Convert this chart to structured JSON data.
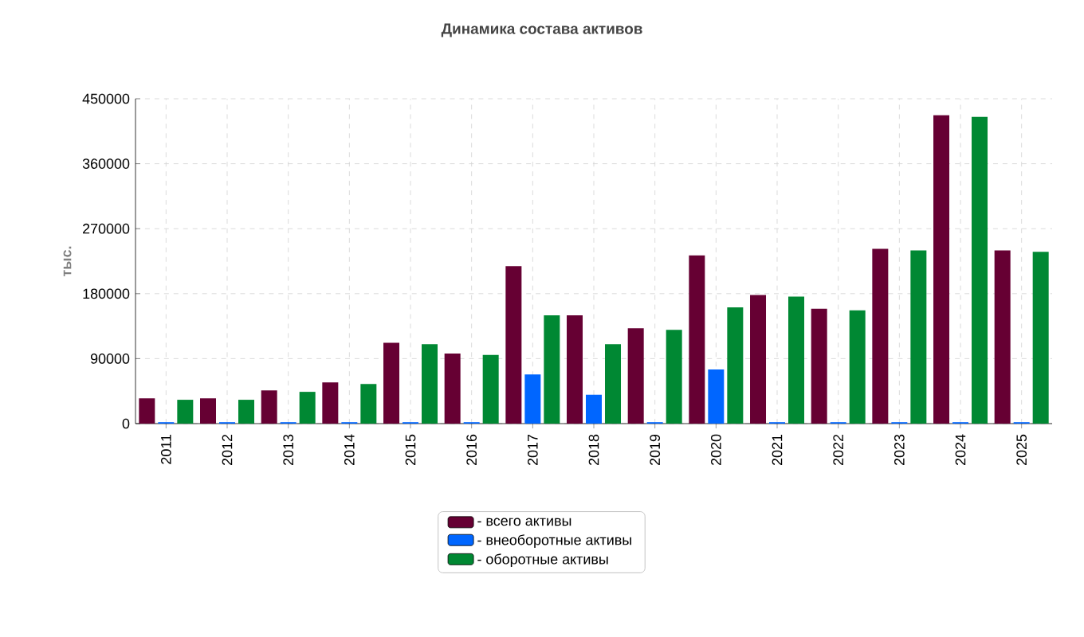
{
  "chart_data": {
    "type": "bar",
    "title": "Динамика состава активов",
    "ylabel": "тыс.",
    "categories": [
      "2011",
      "2012",
      "2013",
      "2014",
      "2015",
      "2016",
      "2017",
      "2018",
      "2019",
      "2020",
      "2021",
      "2022",
      "2023",
      "2024",
      "2025"
    ],
    "series": [
      {
        "name": "- всего активы",
        "color": "#660033",
        "values": [
          35000,
          35000,
          46000,
          57000,
          112000,
          97000,
          218000,
          150000,
          132000,
          233000,
          178000,
          159000,
          242000,
          427000,
          240000
        ]
      },
      {
        "name": "- внеоборотные активы",
        "color": "#0066ff",
        "values": [
          2000,
          2000,
          2000,
          2000,
          2000,
          2000,
          68000,
          40000,
          2000,
          75000,
          2000,
          2000,
          2000,
          2000,
          2000
        ]
      },
      {
        "name": "- оборотные активы",
        "color": "#008833",
        "values": [
          33000,
          33000,
          44000,
          55000,
          110000,
          95000,
          150000,
          110000,
          130000,
          161000,
          176000,
          157000,
          240000,
          425000,
          238000
        ]
      }
    ],
    "ylim": [
      0,
      450000
    ],
    "yticks": [
      0,
      90000,
      180000,
      270000,
      360000,
      450000
    ],
    "grid": true,
    "legend": "bottom"
  }
}
